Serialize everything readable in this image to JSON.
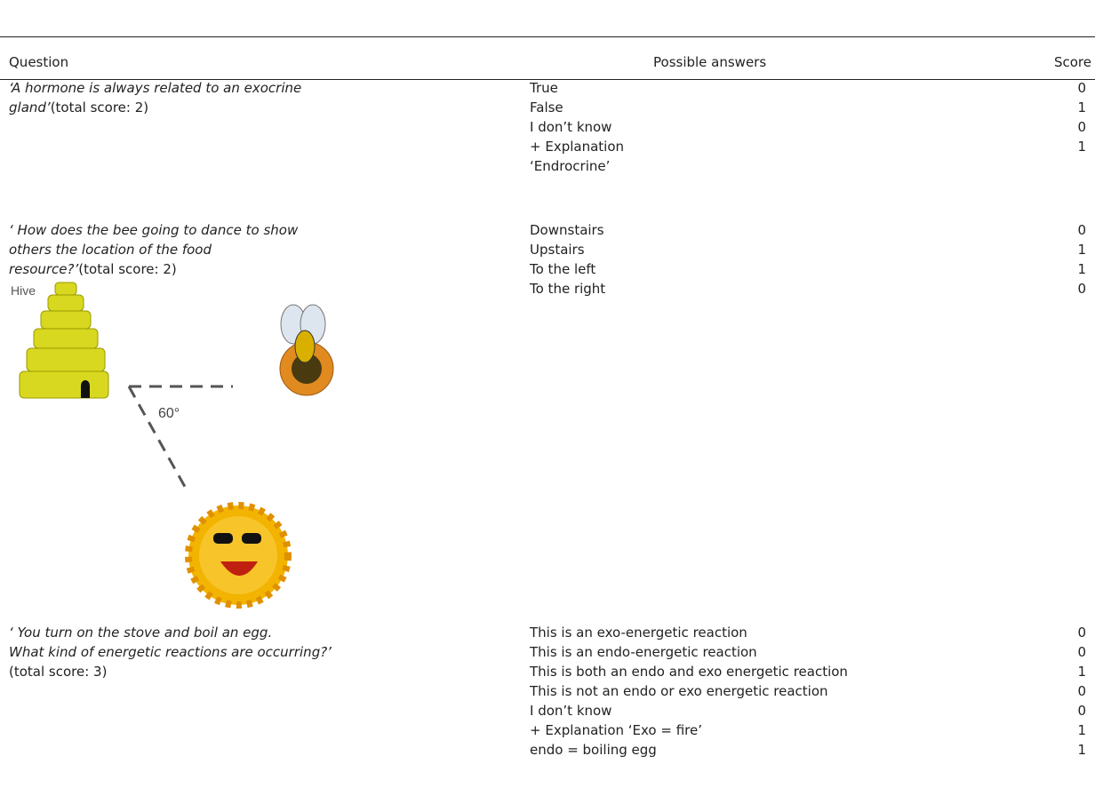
{
  "table": {
    "headers": [
      "Question",
      "Possible answers",
      "Score"
    ],
    "rows": [
      {
        "question": "‘A hormone is always related to an exocrine gland’",
        "note": "(total score: 2)",
        "answers": [
          {
            "text": "True",
            "score": 0
          },
          {
            "text": "False",
            "score": 1
          },
          {
            "text": "I don’t know",
            "score": 0
          },
          {
            "text": "+ Explanation",
            "score": 1
          },
          {
            "text": "‘Endrocrine’"
          }
        ]
      },
      {
        "question": "‘ How does the bee going to dance to show others the location of the food resource?’",
        "note": "(total score: 2)",
        "figure": {
          "hive_label": "Hive",
          "angle_label": "60°"
        },
        "answers": [
          {
            "text": "Downstairs",
            "score": 0
          },
          {
            "text": "Upstairs",
            "score": 1
          },
          {
            "text": "To the left",
            "score": 1
          },
          {
            "text": "To the right",
            "score": 0
          }
        ]
      },
      {
        "question_lines": [
          "‘ You turn on the stove and boil an egg.",
          "What kind of energetic reactions are occurring?’"
        ],
        "note": "(total score: 3)",
        "answers": [
          {
            "text": "This is an exo-energetic reaction",
            "score": 0
          },
          {
            "text": "This is an endo-energetic reaction",
            "score": 0
          },
          {
            "text": "This is both an endo and exo energetic reaction",
            "score": 1
          },
          {
            "text": "This is not an endo or exo energetic reaction",
            "score": 0
          },
          {
            "text": "I don’t know",
            "score": 0
          },
          {
            "text": "+ Explanation ‘Exo = fire’",
            "score": 1
          },
          {
            "text": "endo = boiling egg",
            "score": 1
          }
        ]
      }
    ]
  }
}
